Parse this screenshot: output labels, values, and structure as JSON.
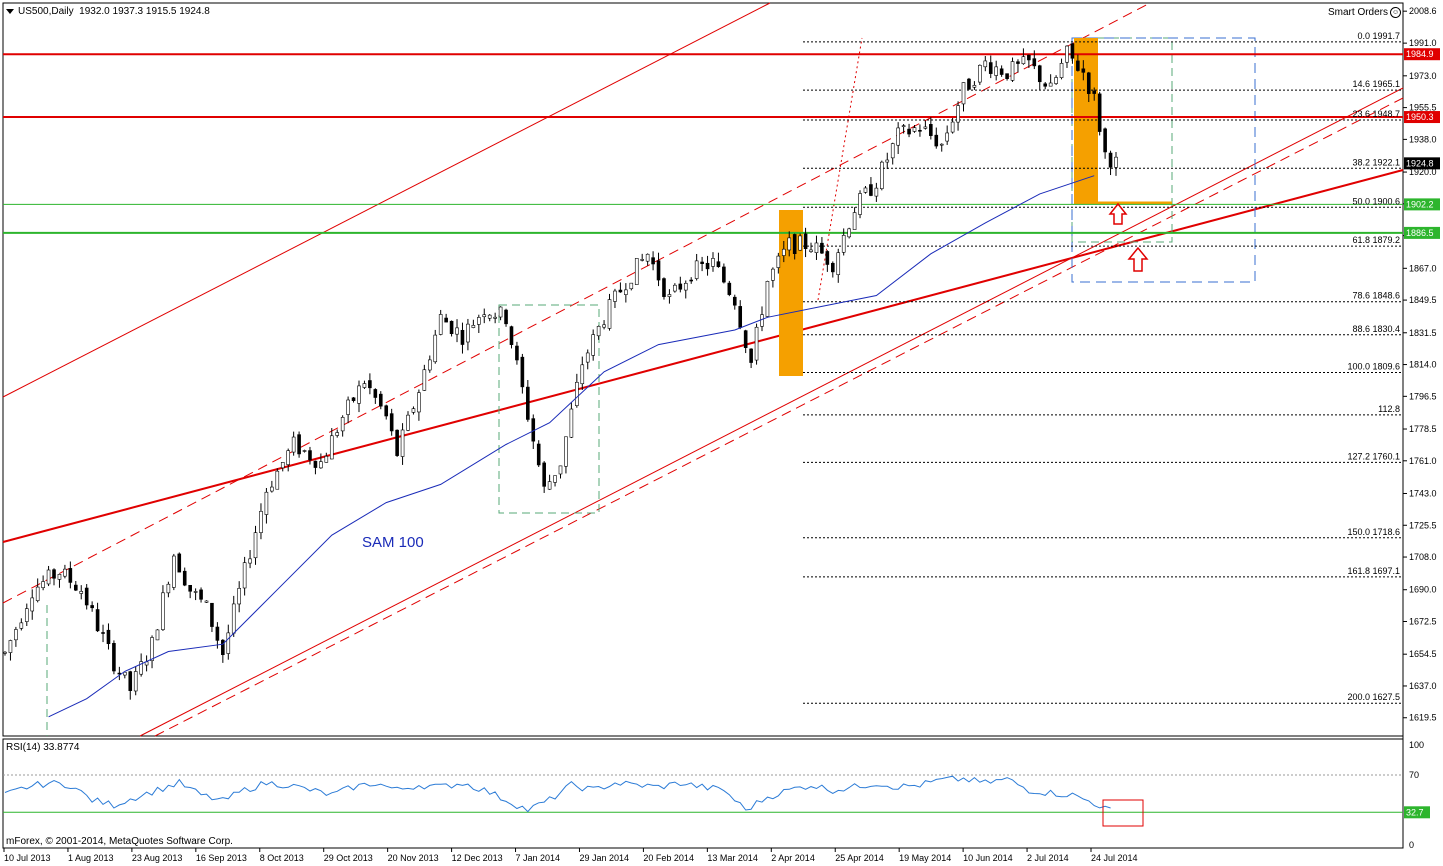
{
  "header": {
    "symbol_title": "US500,Daily",
    "ohlc": "1932.0 1937.3 1915.5 1924.8",
    "smart_orders": "Smart Orders",
    "rsi_title": "RSI(14) 33.8774",
    "copyright": "mForex, © 2001-2014, MetaQuotes Software Corp."
  },
  "colors": {
    "candle": "#000000",
    "ma": "#1a2bb8",
    "resistance": "#e00000",
    "support": "#2db52d",
    "highlight": "#f5a000",
    "box": "#4f9fd0",
    "rsi": "#2b7bd6"
  },
  "chart_data": {
    "type": "candlestick",
    "y_axis": {
      "min": 1610,
      "max": 2012,
      "ticks": [
        "2008.6",
        "1991.0",
        "1973.0",
        "1955.5",
        "1938.0",
        "1920.0",
        "1902.5",
        "1885.0",
        "1867.0",
        "1849.5",
        "1831.5",
        "1814.0",
        "1796.5",
        "1778.5",
        "1761.0",
        "1743.0",
        "1725.5",
        "1708.0",
        "1690.0",
        "1672.5",
        "1654.5",
        "1637.0",
        "1619.5"
      ]
    },
    "x_axis": {
      "ticks": [
        "10 Jul 2013",
        "1 Aug 2013",
        "23 Aug 2013",
        "16 Sep 2013",
        "8 Oct 2013",
        "29 Oct 2013",
        "20 Nov 2013",
        "12 Dec 2013",
        "7 Jan 2014",
        "29 Jan 2014",
        "20 Feb 2014",
        "13 Mar 2014",
        "2 Apr 2014",
        "25 Apr 2014",
        "19 May 2014",
        "10 Jun 2014",
        "2 Jul 2014",
        "24 Jul 2014"
      ]
    },
    "price_path": [
      [
        0,
        1655
      ],
      [
        5,
        1690
      ],
      [
        10,
        1700
      ],
      [
        14,
        1690
      ],
      [
        20,
        1650
      ],
      [
        23,
        1635
      ],
      [
        27,
        1660
      ],
      [
        31,
        1710
      ],
      [
        34,
        1690
      ],
      [
        37,
        1680
      ],
      [
        40,
        1655
      ],
      [
        44,
        1700
      ],
      [
        48,
        1745
      ],
      [
        53,
        1770
      ],
      [
        58,
        1760
      ],
      [
        62,
        1785
      ],
      [
        66,
        1805
      ],
      [
        70,
        1785
      ],
      [
        72,
        1765
      ],
      [
        76,
        1800
      ],
      [
        80,
        1840
      ],
      [
        84,
        1830
      ],
      [
        88,
        1845
      ],
      [
        92,
        1840
      ],
      [
        95,
        1800
      ],
      [
        99,
        1745
      ],
      [
        102,
        1760
      ],
      [
        106,
        1815
      ],
      [
        110,
        1840
      ],
      [
        114,
        1860
      ],
      [
        118,
        1875
      ],
      [
        122,
        1850
      ],
      [
        126,
        1865
      ],
      [
        130,
        1870
      ],
      [
        134,
        1850
      ],
      [
        137,
        1815
      ],
      [
        140,
        1860
      ],
      [
        144,
        1880
      ],
      [
        148,
        1880
      ],
      [
        152,
        1870
      ],
      [
        156,
        1900
      ],
      [
        160,
        1915
      ],
      [
        164,
        1940
      ],
      [
        168,
        1945
      ],
      [
        172,
        1935
      ],
      [
        176,
        1965
      ],
      [
        180,
        1980
      ],
      [
        184,
        1975
      ],
      [
        188,
        1980
      ],
      [
        192,
        1965
      ],
      [
        195,
        1985
      ],
      [
        198,
        1975
      ],
      [
        200,
        1960
      ],
      [
        202,
        1930
      ],
      [
        204,
        1925
      ]
    ],
    "ma_label": "SAM 100",
    "ma_path": [
      [
        8,
        1620
      ],
      [
        15,
        1630
      ],
      [
        22,
        1645
      ],
      [
        30,
        1656
      ],
      [
        40,
        1660
      ],
      [
        50,
        1690
      ],
      [
        60,
        1720
      ],
      [
        70,
        1738
      ],
      [
        80,
        1748
      ],
      [
        92,
        1770
      ],
      [
        100,
        1782
      ],
      [
        110,
        1810
      ],
      [
        120,
        1825
      ],
      [
        134,
        1833
      ],
      [
        140,
        1840
      ],
      [
        150,
        1846
      ],
      [
        160,
        1852
      ],
      [
        170,
        1875
      ],
      [
        180,
        1892
      ],
      [
        190,
        1908
      ],
      [
        200,
        1918
      ]
    ],
    "horizontal_levels": [
      {
        "label": "1984.9",
        "value": 1984.9,
        "color": "#e00000"
      },
      {
        "label": "1950.3",
        "value": 1950.3,
        "color": "#e00000"
      },
      {
        "label": "1924.8",
        "value": 1924.8,
        "color": "#000000"
      },
      {
        "label": "1902.2",
        "value": 1902.2,
        "color": "#2db52d"
      },
      {
        "label": "1886.5",
        "value": 1886.5,
        "color": "#2db52d"
      }
    ],
    "fibonacci": [
      {
        "label": "0.0  1991.7",
        "value": 1991.7
      },
      {
        "label": "14.6  1965.1",
        "value": 1965.1
      },
      {
        "label": "23.6  1948.7",
        "value": 1948.7
      },
      {
        "label": "38.2  1922.1",
        "value": 1922.1
      },
      {
        "label": "50.0  1900.6",
        "value": 1900.6
      },
      {
        "label": "61.8  1879.2",
        "value": 1879.2
      },
      {
        "label": "78.6  1848.6",
        "value": 1848.6
      },
      {
        "label": "88.6  1830.4",
        "value": 1830.4
      },
      {
        "label": "100.0  1809.6",
        "value": 1809.6
      },
      {
        "label": "112.8",
        "value": 1786.3
      },
      {
        "label": "127.2  1760.1",
        "value": 1760.1
      },
      {
        "label": "150.0  1718.6",
        "value": 1718.6
      },
      {
        "label": "161.8  1697.1",
        "value": 1697.1
      },
      {
        "label": "200.0  1627.5",
        "value": 1627.5
      }
    ],
    "rsi": {
      "ticks": [
        "100",
        "70",
        "30",
        "0"
      ],
      "level_label": "32.7",
      "level_value": 32.7,
      "path": [
        [
          0,
          50
        ],
        [
          4,
          58
        ],
        [
          8,
          62
        ],
        [
          12,
          60
        ],
        [
          16,
          45
        ],
        [
          20,
          40
        ],
        [
          24,
          48
        ],
        [
          28,
          55
        ],
        [
          32,
          62
        ],
        [
          36,
          50
        ],
        [
          40,
          44
        ],
        [
          44,
          55
        ],
        [
          48,
          62
        ],
        [
          52,
          60
        ],
        [
          56,
          55
        ],
        [
          60,
          50
        ],
        [
          64,
          58
        ],
        [
          68,
          62
        ],
        [
          72,
          55
        ],
        [
          76,
          60
        ],
        [
          80,
          58
        ],
        [
          84,
          62
        ],
        [
          88,
          55
        ],
        [
          92,
          45
        ],
        [
          96,
          35
        ],
        [
          100,
          45
        ],
        [
          104,
          60
        ],
        [
          108,
          55
        ],
        [
          112,
          62
        ],
        [
          116,
          60
        ],
        [
          120,
          58
        ],
        [
          124,
          62
        ],
        [
          128,
          58
        ],
        [
          132,
          55
        ],
        [
          136,
          35
        ],
        [
          140,
          48
        ],
        [
          144,
          55
        ],
        [
          148,
          60
        ],
        [
          152,
          55
        ],
        [
          156,
          58
        ],
        [
          160,
          62
        ],
        [
          164,
          58
        ],
        [
          168,
          60
        ],
        [
          172,
          65
        ],
        [
          176,
          66
        ],
        [
          180,
          62
        ],
        [
          184,
          66
        ],
        [
          188,
          55
        ],
        [
          192,
          52
        ],
        [
          196,
          50
        ],
        [
          200,
          42
        ],
        [
          203,
          34
        ]
      ]
    }
  }
}
